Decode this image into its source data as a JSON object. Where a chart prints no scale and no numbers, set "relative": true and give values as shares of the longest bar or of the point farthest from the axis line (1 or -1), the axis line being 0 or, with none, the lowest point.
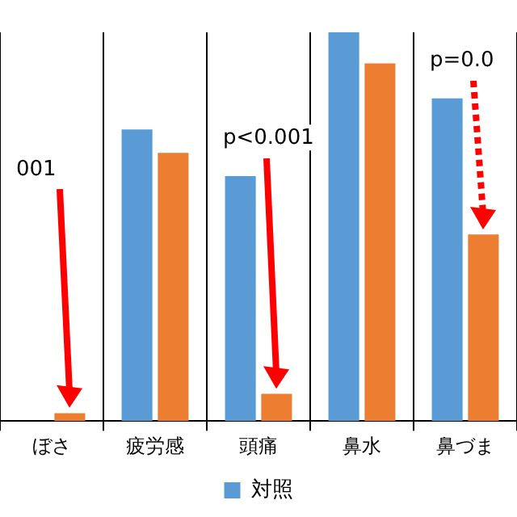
{
  "chart_data": {
    "type": "bar",
    "relative": true,
    "categories": [
      "ぼさ",
      "疲労感",
      "頭痛",
      "鼻水",
      "鼻づま"
    ],
    "series": [
      {
        "name": "対照",
        "color": "#5b9bd5",
        "values": [
          null,
          0.75,
          0.63,
          1,
          0.83
        ]
      },
      {
        "color": "#ed7d31",
        "values": [
          0.02,
          0.69,
          0.07,
          0.92,
          0.48
        ]
      }
    ],
    "grid": "x",
    "legend": "bottom",
    "annotations": [
      "001",
      "p<0.001",
      "p=0.0"
    ]
  }
}
